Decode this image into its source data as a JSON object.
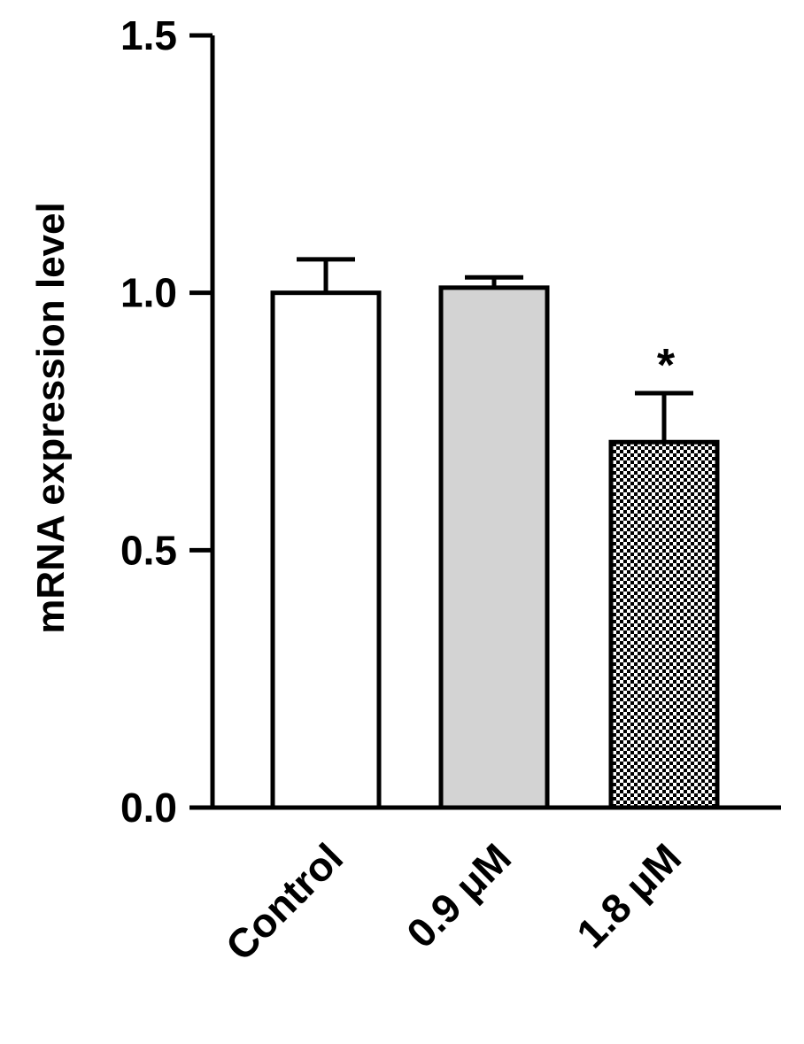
{
  "chart_data": {
    "type": "bar",
    "categories": [
      "Control",
      "0.9 μM",
      "1.8 μM"
    ],
    "values": [
      1.0,
      1.01,
      0.71
    ],
    "errors": [
      0.065,
      0.02,
      0.095
    ],
    "significance": [
      "",
      "",
      "*"
    ],
    "fills": [
      "#ffffff",
      "#d3d3d3",
      "checker"
    ],
    "title": "",
    "xlabel": "",
    "ylabel": "mRNA expression level",
    "ylim": [
      0,
      1.5
    ],
    "yticks": [
      0.0,
      0.5,
      1.0,
      1.5
    ],
    "ytick_labels": [
      "0.0",
      "0.5",
      "1.0",
      "1.5"
    ],
    "grid": false,
    "legend": "none"
  }
}
